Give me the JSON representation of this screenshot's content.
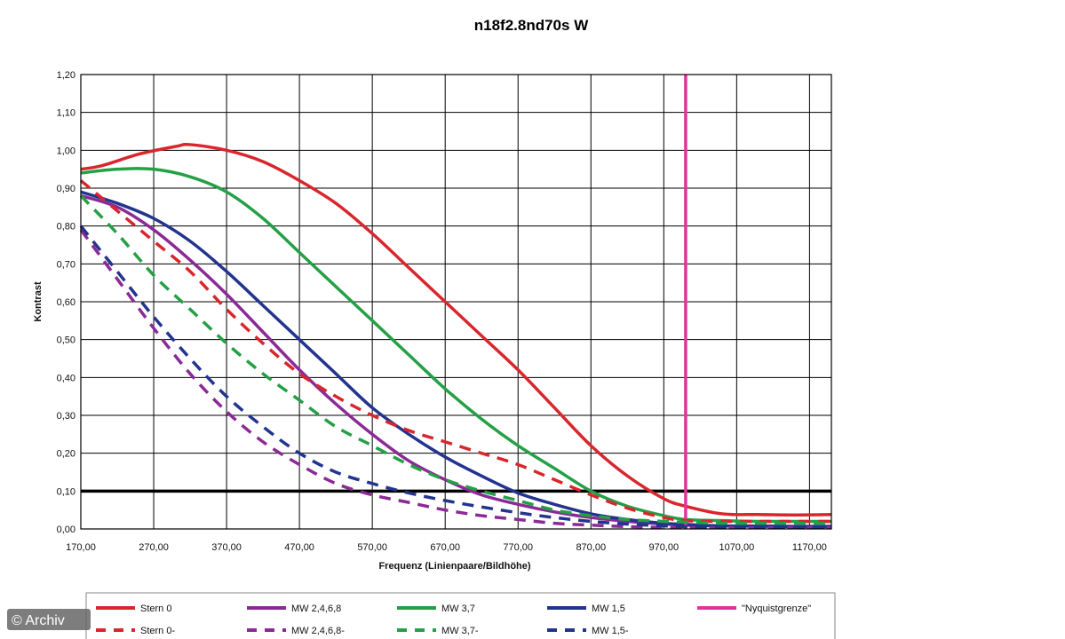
{
  "chart_data": {
    "type": "line",
    "title": "n18f2.8nd70s W",
    "xlabel": "Frequenz (Linienpaare/Bildhöhe)",
    "ylabel": "Kontrast",
    "xlim": [
      170,
      1200
    ],
    "ylim": [
      0,
      1.2
    ],
    "x_ticks": [
      170,
      270,
      370,
      470,
      570,
      670,
      770,
      870,
      970,
      1070,
      1170
    ],
    "x_tick_labels": [
      "170,00",
      "270,00",
      "370,00",
      "470,00",
      "570,00",
      "670,00",
      "770,00",
      "870,00",
      "970,00",
      "1070,00",
      "1170,00"
    ],
    "y_ticks": [
      0,
      0.1,
      0.2,
      0.3,
      0.4,
      0.5,
      0.6,
      0.7,
      0.8,
      0.9,
      1.0,
      1.1,
      1.2
    ],
    "y_tick_labels": [
      "0,00",
      "0,10",
      "0,20",
      "0,30",
      "0,40",
      "0,50",
      "0,60",
      "0,70",
      "0,80",
      "0,90",
      "1,00",
      "1,10",
      "1,20"
    ],
    "grid": true,
    "legend_position": "bottom",
    "reference_line": {
      "y": 0.1,
      "color": "#000000"
    },
    "nyquist_x": 1000,
    "series": [
      {
        "name": "Stern 0",
        "color": "#d9262d",
        "dash": "solid",
        "x": [
          170,
          200,
          250,
          300,
          320,
          370,
          420,
          470,
          520,
          570,
          620,
          670,
          720,
          770,
          820,
          870,
          920,
          970,
          1000,
          1050,
          1100,
          1150,
          1200
        ],
        "y": [
          0.95,
          0.96,
          0.99,
          1.01,
          1.015,
          1.0,
          0.97,
          0.92,
          0.86,
          0.78,
          0.69,
          0.6,
          0.51,
          0.42,
          0.32,
          0.22,
          0.14,
          0.08,
          0.06,
          0.04,
          0.038,
          0.037,
          0.038
        ]
      },
      {
        "name": "MW 2,4,6,8",
        "color": "#8b2a96",
        "dash": "solid",
        "x": [
          170,
          220,
          270,
          320,
          370,
          420,
          470,
          520,
          570,
          620,
          670,
          720,
          770,
          820,
          870,
          920,
          970,
          1000,
          1050,
          1100,
          1150,
          1200
        ],
        "y": [
          0.88,
          0.85,
          0.79,
          0.71,
          0.62,
          0.52,
          0.42,
          0.33,
          0.25,
          0.18,
          0.13,
          0.09,
          0.065,
          0.045,
          0.03,
          0.02,
          0.013,
          0.01,
          0.008,
          0.008,
          0.007,
          0.007
        ]
      },
      {
        "name": "MW 3,7",
        "color": "#24a046",
        "dash": "solid",
        "x": [
          170,
          220,
          270,
          320,
          370,
          420,
          470,
          520,
          570,
          620,
          670,
          720,
          770,
          820,
          870,
          920,
          970,
          1000,
          1050,
          1100,
          1150,
          1200
        ],
        "y": [
          0.94,
          0.95,
          0.95,
          0.93,
          0.89,
          0.82,
          0.73,
          0.64,
          0.55,
          0.46,
          0.37,
          0.29,
          0.22,
          0.16,
          0.1,
          0.06,
          0.035,
          0.025,
          0.022,
          0.02,
          0.02,
          0.02
        ]
      },
      {
        "name": "MW 1,5",
        "color": "#22348e",
        "dash": "solid",
        "x": [
          170,
          220,
          270,
          320,
          370,
          420,
          470,
          520,
          570,
          620,
          670,
          720,
          770,
          820,
          870,
          920,
          970,
          1000,
          1050,
          1100,
          1150,
          1200
        ],
        "y": [
          0.89,
          0.86,
          0.82,
          0.76,
          0.68,
          0.59,
          0.5,
          0.41,
          0.32,
          0.25,
          0.19,
          0.14,
          0.095,
          0.065,
          0.04,
          0.025,
          0.015,
          0.012,
          0.008,
          0.007,
          0.006,
          0.006
        ]
      },
      {
        "name": "\"Nyquistgrenze\"",
        "color": "#e0349c",
        "dash": "solid",
        "x": [
          1000,
          1000
        ],
        "y": [
          0,
          1.2
        ]
      },
      {
        "name": "Stern 0-",
        "color": "#d9262d",
        "dash": "dashed",
        "x": [
          170,
          220,
          270,
          320,
          370,
          420,
          470,
          520,
          570,
          620,
          670,
          720,
          770,
          820,
          870,
          920,
          970,
          1000,
          1050,
          1100,
          1150,
          1200
        ],
        "y": [
          0.92,
          0.84,
          0.76,
          0.68,
          0.58,
          0.49,
          0.41,
          0.35,
          0.3,
          0.26,
          0.23,
          0.2,
          0.17,
          0.13,
          0.09,
          0.055,
          0.03,
          0.022,
          0.02,
          0.02,
          0.02,
          0.02
        ]
      },
      {
        "name": "MW 2,4,6,8-",
        "color": "#8b2a96",
        "dash": "dashed",
        "x": [
          170,
          220,
          270,
          320,
          370,
          420,
          470,
          520,
          570,
          620,
          670,
          720,
          770,
          820,
          870,
          920,
          970,
          1000,
          1050,
          1100,
          1150,
          1200
        ],
        "y": [
          0.79,
          0.66,
          0.53,
          0.41,
          0.31,
          0.23,
          0.17,
          0.12,
          0.09,
          0.07,
          0.05,
          0.035,
          0.025,
          0.015,
          0.01,
          0.006,
          0.004,
          0.003,
          0.003,
          0.003,
          0.003,
          0.003
        ]
      },
      {
        "name": "MW 3,7-",
        "color": "#24a046",
        "dash": "dashed",
        "x": [
          170,
          220,
          270,
          320,
          370,
          420,
          470,
          520,
          570,
          620,
          670,
          720,
          770,
          820,
          870,
          920,
          970,
          1000,
          1050,
          1100,
          1150,
          1200
        ],
        "y": [
          0.88,
          0.78,
          0.67,
          0.58,
          0.49,
          0.41,
          0.34,
          0.27,
          0.22,
          0.17,
          0.13,
          0.1,
          0.075,
          0.05,
          0.035,
          0.025,
          0.02,
          0.018,
          0.015,
          0.015,
          0.015,
          0.015
        ]
      },
      {
        "name": "MW 1,5-",
        "color": "#22348e",
        "dash": "dashed",
        "x": [
          170,
          220,
          270,
          320,
          370,
          420,
          470,
          520,
          570,
          620,
          670,
          720,
          770,
          820,
          870,
          920,
          970,
          1000,
          1050,
          1100,
          1150,
          1200
        ],
        "y": [
          0.8,
          0.68,
          0.56,
          0.45,
          0.35,
          0.27,
          0.2,
          0.15,
          0.12,
          0.095,
          0.075,
          0.058,
          0.043,
          0.03,
          0.02,
          0.013,
          0.008,
          0.006,
          0.005,
          0.005,
          0.005,
          0.005
        ]
      }
    ]
  },
  "watermark": "© Archiv"
}
